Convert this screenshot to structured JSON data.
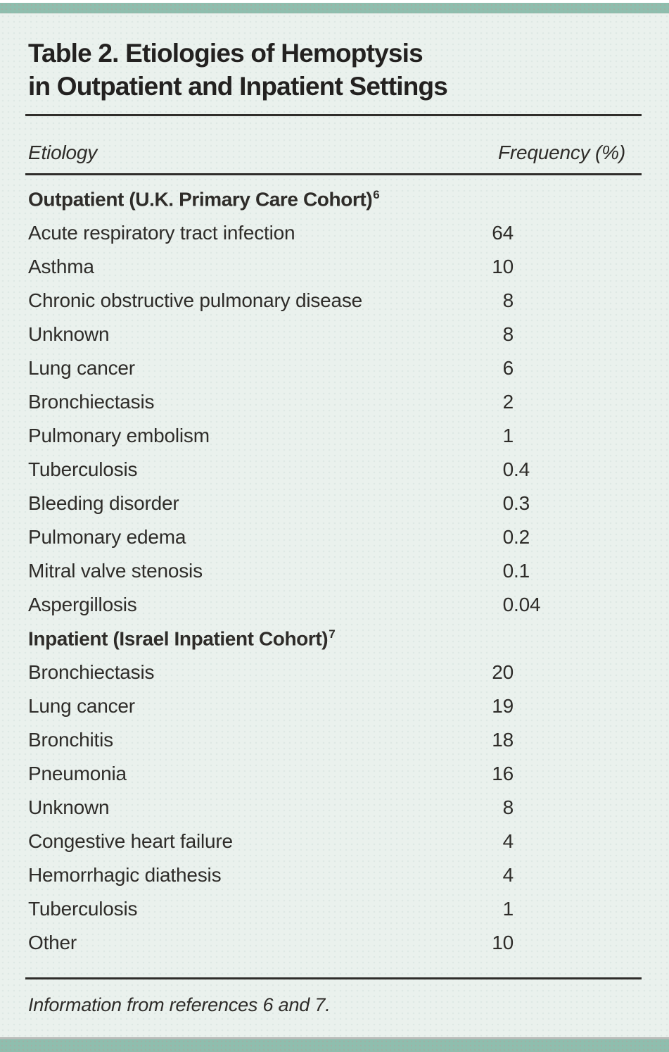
{
  "table": {
    "title_line1": "Table 2. Etiologies of Hemoptysis",
    "title_line2": "in Outpatient and Inpatient Settings",
    "columns": {
      "etiology": "Etiology",
      "frequency": "Frequency (%)"
    },
    "sections": [
      {
        "header": "Outpatient (U.K. Primary Care Cohort)",
        "reference_superscript": "6",
        "rows": [
          {
            "etiology": "Acute respiratory tract infection",
            "frequency": "64"
          },
          {
            "etiology": "Asthma",
            "frequency": "10"
          },
          {
            "etiology": "Chronic obstructive pulmonary disease",
            "frequency": "8"
          },
          {
            "etiology": "Unknown",
            "frequency": "8"
          },
          {
            "etiology": "Lung cancer",
            "frequency": "6"
          },
          {
            "etiology": "Bronchiectasis",
            "frequency": "2"
          },
          {
            "etiology": "Pulmonary embolism",
            "frequency": "1"
          },
          {
            "etiology": "Tuberculosis",
            "frequency": "0.4"
          },
          {
            "etiology": "Bleeding disorder",
            "frequency": "0.3"
          },
          {
            "etiology": "Pulmonary edema",
            "frequency": "0.2"
          },
          {
            "etiology": "Mitral valve stenosis",
            "frequency": "0.1"
          },
          {
            "etiology": "Aspergillosis",
            "frequency": "0.04"
          }
        ]
      },
      {
        "header": "Inpatient (Israel Inpatient Cohort)",
        "reference_superscript": "7",
        "rows": [
          {
            "etiology": "Bronchiectasis",
            "frequency": "20"
          },
          {
            "etiology": "Lung cancer",
            "frequency": "19"
          },
          {
            "etiology": "Bronchitis",
            "frequency": "18"
          },
          {
            "etiology": "Pneumonia",
            "frequency": "16"
          },
          {
            "etiology": "Unknown",
            "frequency": "8"
          },
          {
            "etiology": "Congestive heart failure",
            "frequency": "4"
          },
          {
            "etiology": "Hemorrhagic diathesis",
            "frequency": "4"
          },
          {
            "etiology": "Tuberculosis",
            "frequency": "1"
          },
          {
            "etiology": "Other",
            "frequency": "10"
          }
        ]
      }
    ],
    "footer": "Information from references 6 and 7."
  },
  "colors": {
    "accent_teal": "#8fbeae",
    "panel_mint": "#eaf1ed",
    "text_ink": "#2e2c29",
    "rule": "#2f2d2a"
  }
}
